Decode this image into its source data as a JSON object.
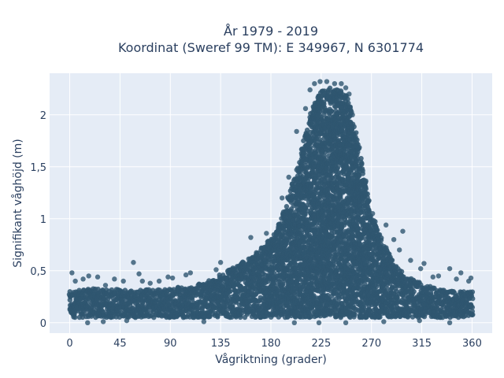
{
  "chart_data": {
    "type": "scatter",
    "title_lines": [
      "År 1979 - 2019",
      "Koordinat (Sweref 99 TM): E 349967, N 6301774"
    ],
    "xlabel": "Vågriktning (grader)",
    "ylabel": "Signifikant våghöjd (m)",
    "xlim": [
      -18,
      378
    ],
    "ylim": [
      -0.1,
      2.4
    ],
    "xticks": [
      0,
      45,
      90,
      135,
      180,
      225,
      270,
      315,
      360
    ],
    "xtick_labels": [
      "0",
      "45",
      "90",
      "135",
      "180",
      "225",
      "270",
      "315",
      "360"
    ],
    "yticks": [
      0,
      0.5,
      1,
      1.5,
      2
    ],
    "ytick_labels": [
      "0",
      "0,5",
      "1",
      "1,5",
      "2"
    ],
    "grid": true,
    "marker_color": "#2f5670",
    "background_color": "#e5ecf6",
    "envelope": {
      "direction": [
        0,
        20,
        45,
        90,
        120,
        150,
        170,
        185,
        195,
        205,
        212,
        218,
        225,
        232,
        240,
        245,
        250,
        255,
        260,
        265,
        270,
        280,
        290,
        300,
        315,
        330,
        345,
        360
      ],
      "upper_height": [
        0.3,
        0.33,
        0.32,
        0.33,
        0.38,
        0.55,
        0.7,
        0.88,
        1.2,
        1.55,
        1.85,
        2.1,
        2.25,
        2.26,
        2.24,
        2.22,
        2.15,
        1.95,
        1.65,
        1.35,
        1.05,
        0.8,
        0.6,
        0.45,
        0.38,
        0.32,
        0.3,
        0.3
      ],
      "lower_height": 0.05
    },
    "outliers": [
      {
        "x": 2,
        "y": 0.48
      },
      {
        "x": 5,
        "y": 0.4
      },
      {
        "x": 12,
        "y": 0.42
      },
      {
        "x": 17,
        "y": 0.45
      },
      {
        "x": 25,
        "y": 0.44
      },
      {
        "x": 32,
        "y": 0.36
      },
      {
        "x": 40,
        "y": 0.42
      },
      {
        "x": 48,
        "y": 0.4
      },
      {
        "x": 57,
        "y": 0.58
      },
      {
        "x": 62,
        "y": 0.47
      },
      {
        "x": 65,
        "y": 0.4
      },
      {
        "x": 72,
        "y": 0.38
      },
      {
        "x": 80,
        "y": 0.4
      },
      {
        "x": 88,
        "y": 0.44
      },
      {
        "x": 92,
        "y": 0.43
      },
      {
        "x": 104,
        "y": 0.46
      },
      {
        "x": 108,
        "y": 0.48
      },
      {
        "x": 131,
        "y": 0.51
      },
      {
        "x": 135,
        "y": 0.58
      },
      {
        "x": 162,
        "y": 0.82
      },
      {
        "x": 176,
        "y": 0.86
      },
      {
        "x": 190,
        "y": 1.2
      },
      {
        "x": 196,
        "y": 1.4
      },
      {
        "x": 203,
        "y": 1.84
      },
      {
        "x": 211,
        "y": 2.06
      },
      {
        "x": 215,
        "y": 2.24
      },
      {
        "x": 219,
        "y": 2.3
      },
      {
        "x": 224,
        "y": 2.32
      },
      {
        "x": 230,
        "y": 2.32
      },
      {
        "x": 237,
        "y": 2.3
      },
      {
        "x": 243,
        "y": 2.3
      },
      {
        "x": 247,
        "y": 2.26
      },
      {
        "x": 250,
        "y": 2.2
      },
      {
        "x": 253,
        "y": 2.0
      },
      {
        "x": 256,
        "y": 1.7
      },
      {
        "x": 260,
        "y": 1.48
      },
      {
        "x": 264,
        "y": 1.26
      },
      {
        "x": 271,
        "y": 1.05
      },
      {
        "x": 283,
        "y": 0.94
      },
      {
        "x": 290,
        "y": 0.8
      },
      {
        "x": 295,
        "y": 0.7
      },
      {
        "x": 298,
        "y": 0.88
      },
      {
        "x": 305,
        "y": 0.6
      },
      {
        "x": 314,
        "y": 0.52
      },
      {
        "x": 317,
        "y": 0.57
      },
      {
        "x": 325,
        "y": 0.44
      },
      {
        "x": 330,
        "y": 0.45
      },
      {
        "x": 340,
        "y": 0.52
      },
      {
        "x": 346,
        "y": 0.42
      },
      {
        "x": 350,
        "y": 0.48
      },
      {
        "x": 357,
        "y": 0.4
      },
      {
        "x": 359,
        "y": 0.43
      },
      {
        "x": 16,
        "y": 0.0
      },
      {
        "x": 30,
        "y": 0.01
      },
      {
        "x": 51,
        "y": 0.02
      },
      {
        "x": 120,
        "y": 0.01
      },
      {
        "x": 201,
        "y": 0.0
      },
      {
        "x": 223,
        "y": 0.0
      },
      {
        "x": 247,
        "y": 0.0
      },
      {
        "x": 281,
        "y": 0.01
      },
      {
        "x": 313,
        "y": 0.02
      },
      {
        "x": 340,
        "y": 0.0
      }
    ]
  }
}
